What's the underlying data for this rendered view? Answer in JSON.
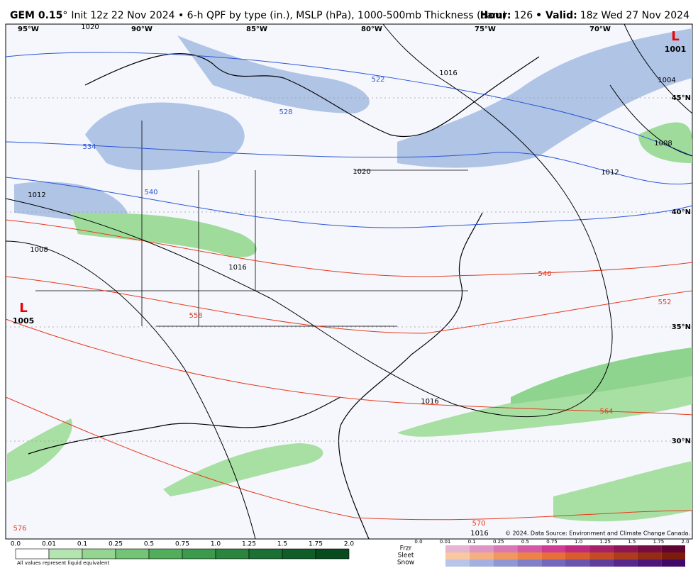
{
  "header": {
    "model": "GEM 0.15",
    "degree": "°",
    "description": "Init 12z 22 Nov 2024 • 6-h QPF by type (in.), MSLP (hPa), 1000-500mb Thickness (dam)",
    "hour_label": "Hour:",
    "hour": "126",
    "valid_label": "• Valid:",
    "valid": "18z Wed 27 Nov 2024"
  },
  "map": {
    "longitudes": [
      "95°W",
      "90°W",
      "85°W",
      "80°W",
      "75°W",
      "70°W"
    ],
    "latitudes": [
      "45°N",
      "40°N",
      "35°N",
      "30°N"
    ],
    "isobar_labels": [
      "1020",
      "1016",
      "1004",
      "1008",
      "1012",
      "1020",
      "1012",
      "1008",
      "1016",
      "1016",
      "1016"
    ],
    "thickness_labels": [
      "522",
      "528",
      "534",
      "540",
      "546",
      "552",
      "558",
      "564",
      "570",
      "576"
    ],
    "pressure_centers": [
      {
        "type": "L",
        "value": "1001"
      },
      {
        "type": "L",
        "value": "1005"
      }
    ],
    "copyright": "© 2024. Data Source: Environment and Climate Change Canada."
  },
  "legend": {
    "rain_ticks": [
      "0.0",
      "0.01",
      "0.1",
      "0.25",
      "0.5",
      "0.75",
      "1.0",
      "1.25",
      "1.5",
      "1.75",
      "2.0"
    ],
    "note": "All values represent liquid equivalent",
    "types": [
      "Frzr",
      "Sleet",
      "Snow"
    ],
    "type_ticks": [
      "0.0",
      "0.01",
      "0.1",
      "0.25",
      "0.5",
      "0.75",
      "1.0",
      "1.25",
      "1.5",
      "1.75",
      "2.0"
    ]
  }
}
